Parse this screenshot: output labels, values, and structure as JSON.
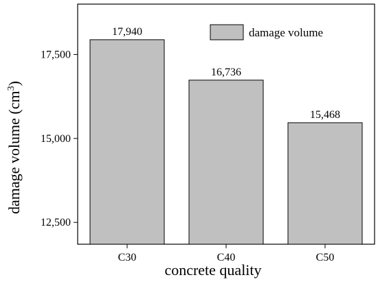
{
  "chart_data": {
    "type": "bar",
    "categories": [
      "C30",
      "C40",
      "C50"
    ],
    "values": [
      17940,
      16736,
      15468
    ],
    "value_labels": [
      "17,940",
      "16,736",
      "15,468"
    ],
    "xlabel": "concrete quality",
    "ylabel_main": "damage volume (cm",
    "ylabel_sup": "3",
    "ylabel_end": ")",
    "ylim": [
      11850,
      19000
    ],
    "yticks": [
      12500,
      15000,
      17500
    ],
    "ytick_labels": [
      "12,500",
      "15,000",
      "17,500"
    ],
    "legend": {
      "label": "damage volume",
      "placement": "top-right"
    },
    "bar_color": "#c0c0c0",
    "grid": false
  }
}
